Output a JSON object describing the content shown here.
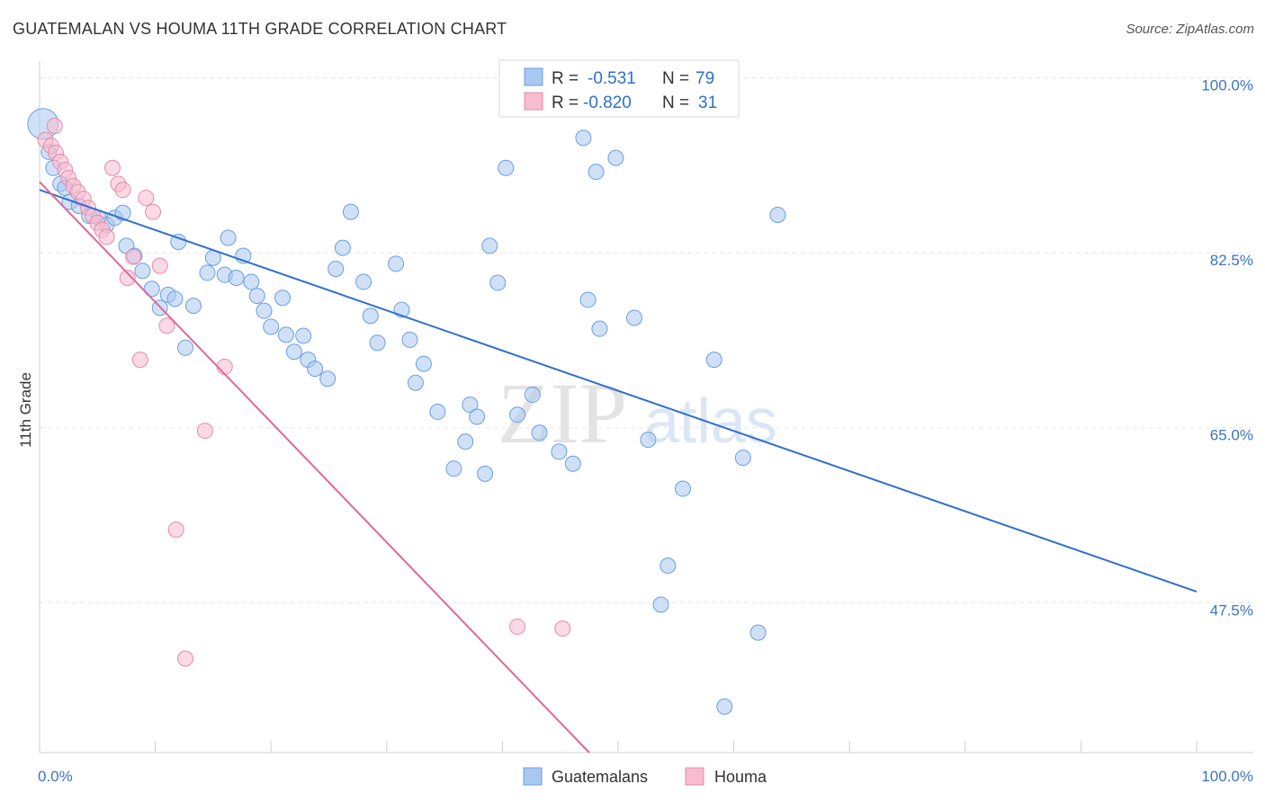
{
  "header": {
    "title": "GUATEMALAN VS HOUMA 11TH GRADE CORRELATION CHART",
    "source": "Source: ZipAtlas.com"
  },
  "watermark": {
    "zip": "ZIP",
    "atlas": "atlas"
  },
  "legend_top": {
    "rows": [
      {
        "r_label": "R =",
        "r_value": "-0.531",
        "n_label": "N =",
        "n_value": "79",
        "color": "#a9c8f0",
        "border": "#6a9ee0"
      },
      {
        "r_label": "R =",
        "r_value": "-0.820",
        "n_label": "N =",
        "n_value": "31",
        "color": "#f7bcd0",
        "border": "#e78aa9"
      }
    ]
  },
  "chart_data": {
    "type": "scatter",
    "ylabel": "11th Grade",
    "xlim": [
      0,
      100
    ],
    "ylim": [
      32.5,
      101.5
    ],
    "y_ticks": [
      {
        "value": 100.0,
        "label": "100.0%"
      },
      {
        "value": 82.5,
        "label": "82.5%"
      },
      {
        "value": 65.0,
        "label": "65.0%"
      },
      {
        "value": 47.5,
        "label": "47.5%"
      }
    ],
    "x_tick_labels": {
      "left": "0.0%",
      "right": "100.0%"
    },
    "legend_placement": "top-center",
    "series": [
      {
        "name": "Guatemalans",
        "color": "#a9c8f0",
        "edge": "#6a9ee0",
        "line_color": "#2f6fd0",
        "trend": {
          "x": [
            0,
            100
          ],
          "y": [
            88.8,
            48.6
          ]
        },
        "points": [
          {
            "x": 0.3,
            "y": 95.4,
            "big": true
          },
          {
            "x": 0.8,
            "y": 92.6
          },
          {
            "x": 1.2,
            "y": 91.0
          },
          {
            "x": 1.8,
            "y": 89.4
          },
          {
            "x": 2.2,
            "y": 89.0
          },
          {
            "x": 2.6,
            "y": 87.6
          },
          {
            "x": 3.4,
            "y": 87.2
          },
          {
            "x": 4.3,
            "y": 86.2
          },
          {
            "x": 5.1,
            "y": 86.0
          },
          {
            "x": 5.8,
            "y": 85.3
          },
          {
            "x": 6.5,
            "y": 86.0
          },
          {
            "x": 7.2,
            "y": 86.5
          },
          {
            "x": 7.5,
            "y": 83.2
          },
          {
            "x": 8.2,
            "y": 82.2
          },
          {
            "x": 8.9,
            "y": 80.7
          },
          {
            "x": 9.7,
            "y": 78.9
          },
          {
            "x": 10.4,
            "y": 77.0
          },
          {
            "x": 11.1,
            "y": 78.3
          },
          {
            "x": 11.7,
            "y": 77.9
          },
          {
            "x": 12.0,
            "y": 83.6
          },
          {
            "x": 12.6,
            "y": 73.0
          },
          {
            "x": 13.3,
            "y": 77.2
          },
          {
            "x": 14.5,
            "y": 80.5
          },
          {
            "x": 15.0,
            "y": 82.0
          },
          {
            "x": 16.0,
            "y": 80.3
          },
          {
            "x": 16.3,
            "y": 84.0
          },
          {
            "x": 17.0,
            "y": 80.0
          },
          {
            "x": 17.6,
            "y": 82.2
          },
          {
            "x": 18.3,
            "y": 79.6
          },
          {
            "x": 18.8,
            "y": 78.2
          },
          {
            "x": 19.4,
            "y": 76.7
          },
          {
            "x": 20.0,
            "y": 75.1
          },
          {
            "x": 21.0,
            "y": 78.0
          },
          {
            "x": 21.3,
            "y": 74.3
          },
          {
            "x": 22.0,
            "y": 72.6
          },
          {
            "x": 22.8,
            "y": 74.2
          },
          {
            "x": 23.2,
            "y": 71.8
          },
          {
            "x": 23.8,
            "y": 70.9
          },
          {
            "x": 24.9,
            "y": 69.9
          },
          {
            "x": 25.6,
            "y": 80.9
          },
          {
            "x": 26.2,
            "y": 83.0
          },
          {
            "x": 26.9,
            "y": 86.6
          },
          {
            "x": 28.0,
            "y": 79.6
          },
          {
            "x": 28.6,
            "y": 76.2
          },
          {
            "x": 29.2,
            "y": 73.5
          },
          {
            "x": 30.8,
            "y": 81.4
          },
          {
            "x": 31.3,
            "y": 76.8
          },
          {
            "x": 32.0,
            "y": 73.8
          },
          {
            "x": 32.5,
            "y": 69.5
          },
          {
            "x": 33.2,
            "y": 71.4
          },
          {
            "x": 34.4,
            "y": 66.6
          },
          {
            "x": 35.8,
            "y": 60.9
          },
          {
            "x": 36.8,
            "y": 63.6
          },
          {
            "x": 37.2,
            "y": 67.3
          },
          {
            "x": 37.8,
            "y": 66.1
          },
          {
            "x": 38.5,
            "y": 60.4
          },
          {
            "x": 38.9,
            "y": 83.2
          },
          {
            "x": 39.6,
            "y": 79.5
          },
          {
            "x": 40.3,
            "y": 91.0
          },
          {
            "x": 41.3,
            "y": 66.3
          },
          {
            "x": 42.6,
            "y": 68.3
          },
          {
            "x": 43.2,
            "y": 64.5
          },
          {
            "x": 44.9,
            "y": 62.6
          },
          {
            "x": 46.1,
            "y": 61.4
          },
          {
            "x": 47.0,
            "y": 94.0
          },
          {
            "x": 47.4,
            "y": 77.8
          },
          {
            "x": 48.1,
            "y": 90.6
          },
          {
            "x": 48.4,
            "y": 74.9
          },
          {
            "x": 49.8,
            "y": 92.0
          },
          {
            "x": 51.4,
            "y": 76.0
          },
          {
            "x": 52.6,
            "y": 63.8
          },
          {
            "x": 53.7,
            "y": 47.3
          },
          {
            "x": 54.3,
            "y": 51.2
          },
          {
            "x": 55.6,
            "y": 58.9
          },
          {
            "x": 58.3,
            "y": 71.8
          },
          {
            "x": 59.2,
            "y": 37.1
          },
          {
            "x": 60.8,
            "y": 62.0
          },
          {
            "x": 62.1,
            "y": 44.5
          },
          {
            "x": 63.8,
            "y": 86.3
          }
        ]
      },
      {
        "name": "Houma",
        "color": "#f7bcd0",
        "edge": "#e78aa9",
        "line_color": "#e0679a",
        "trend": {
          "x": [
            0,
            47.5
          ],
          "y": [
            89.6,
            32.5
          ]
        },
        "points": [
          {
            "x": 0.5,
            "y": 93.8
          },
          {
            "x": 1.0,
            "y": 93.2
          },
          {
            "x": 1.4,
            "y": 92.5
          },
          {
            "x": 1.8,
            "y": 91.6
          },
          {
            "x": 2.2,
            "y": 90.8
          },
          {
            "x": 2.5,
            "y": 90.0
          },
          {
            "x": 2.9,
            "y": 89.2
          },
          {
            "x": 3.3,
            "y": 88.6
          },
          {
            "x": 3.8,
            "y": 87.9
          },
          {
            "x": 4.2,
            "y": 87.0
          },
          {
            "x": 4.6,
            "y": 86.2
          },
          {
            "x": 5.0,
            "y": 85.5
          },
          {
            "x": 5.4,
            "y": 84.8
          },
          {
            "x": 5.8,
            "y": 84.1
          },
          {
            "x": 6.3,
            "y": 91.0
          },
          {
            "x": 6.8,
            "y": 89.4
          },
          {
            "x": 7.2,
            "y": 88.8
          },
          {
            "x": 7.6,
            "y": 80.0
          },
          {
            "x": 8.1,
            "y": 82.1
          },
          {
            "x": 8.7,
            "y": 71.8
          },
          {
            "x": 9.2,
            "y": 88.0
          },
          {
            "x": 9.8,
            "y": 86.6
          },
          {
            "x": 10.4,
            "y": 81.2
          },
          {
            "x": 11.0,
            "y": 75.2
          },
          {
            "x": 11.8,
            "y": 54.8
          },
          {
            "x": 12.6,
            "y": 41.9
          },
          {
            "x": 14.3,
            "y": 64.7
          },
          {
            "x": 16.0,
            "y": 71.1
          },
          {
            "x": 41.3,
            "y": 45.1
          },
          {
            "x": 45.2,
            "y": 44.9
          },
          {
            "x": 1.3,
            "y": 95.2
          }
        ]
      }
    ]
  }
}
